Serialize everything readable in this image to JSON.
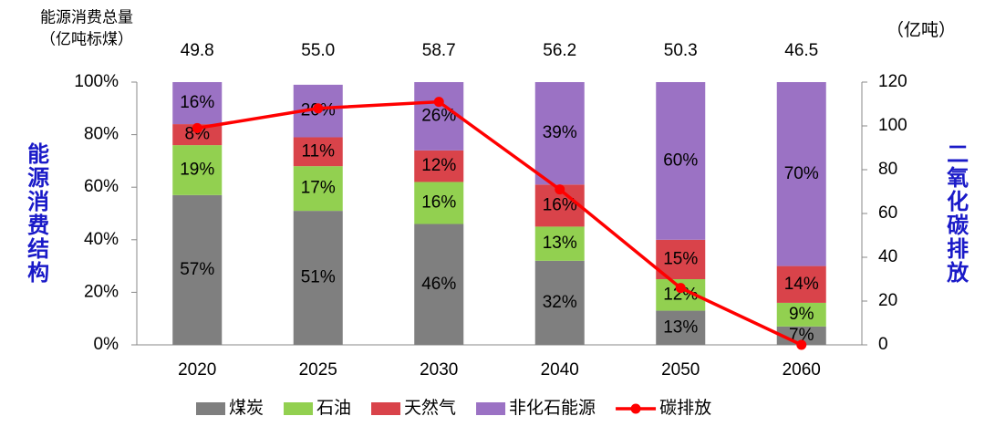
{
  "chart_data": {
    "type": "stacked-bar-line",
    "totals": {
      "title": [
        "能源消费总量",
        "（亿吨标煤）"
      ],
      "values": [
        49.8,
        55.0,
        58.7,
        56.2,
        50.3,
        46.5
      ],
      "value_labels": [
        "49.8",
        "55.0",
        "58.7",
        "56.2",
        "50.3",
        "46.5"
      ]
    },
    "y_label": "能源消费结构",
    "y2_label": "二氧化碳排放",
    "y2_unit": "（亿吨）",
    "categories": [
      "2020",
      "2025",
      "2030",
      "2040",
      "2050",
      "2060"
    ],
    "series": [
      {
        "name": "煤炭",
        "color": "#7f7f7f",
        "values": [
          57,
          51,
          46,
          32,
          13,
          7
        ],
        "value_labels": [
          "57%",
          "51%",
          "46%",
          "32%",
          "13%",
          "7%"
        ]
      },
      {
        "name": "石油",
        "color": "#92d050",
        "values": [
          19,
          17,
          16,
          13,
          12,
          9
        ],
        "value_labels": [
          "19%",
          "17%",
          "16%",
          "13%",
          "12%",
          "9%"
        ]
      },
      {
        "name": "天然气",
        "color": "#d9434a",
        "values": [
          8,
          11,
          12,
          16,
          15,
          14
        ],
        "value_labels": [
          "8%",
          "11%",
          "12%",
          "16%",
          "15%",
          "14%"
        ]
      },
      {
        "name": "非化石能源",
        "color": "#9b72c4",
        "values": [
          16,
          20,
          26,
          39,
          60,
          70
        ],
        "value_labels": [
          "16%",
          "20%",
          "26%",
          "39%",
          "60%",
          "70%"
        ]
      },
      {
        "name": "碳排放",
        "color": "#ff0000",
        "axis": "y2",
        "values": [
          99,
          108,
          111,
          71,
          26,
          0
        ]
      }
    ],
    "ylim": [
      0,
      100
    ],
    "yticks": [
      {
        "value": 0,
        "label": "0%"
      },
      {
        "value": 20,
        "label": "20%"
      },
      {
        "value": 40,
        "label": "40%"
      },
      {
        "value": 60,
        "label": "60%"
      },
      {
        "value": 80,
        "label": "80%"
      },
      {
        "value": 100,
        "label": "100%"
      }
    ],
    "y2lim": [
      0,
      120
    ],
    "y2ticks": [
      0,
      20,
      40,
      60,
      80,
      100,
      120
    ]
  }
}
